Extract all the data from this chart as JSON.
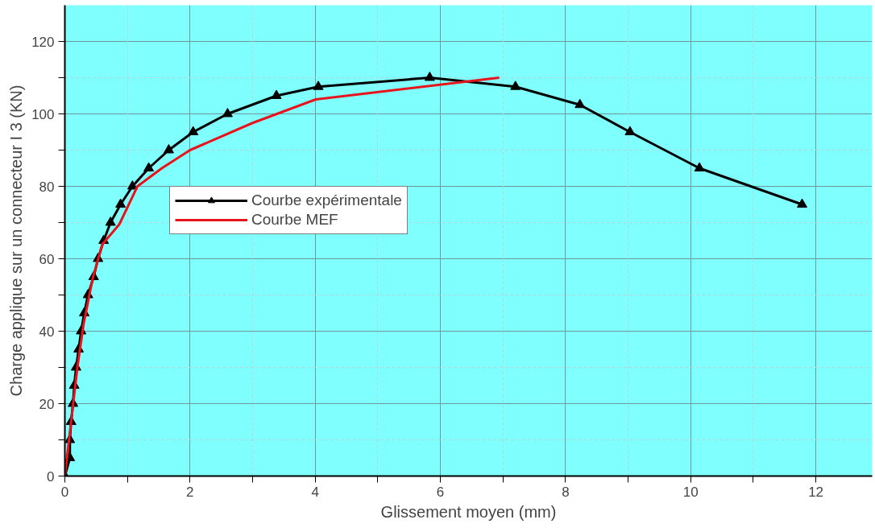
{
  "chart_data": {
    "type": "line",
    "xlabel": "Glissement moyen (mm)",
    "ylabel": "Charge applique sur un connecteur I 3 (KN)",
    "xlim": [
      0,
      12.9
    ],
    "ylim": [
      0,
      130
    ],
    "xticks": [
      0,
      {
        "value": 1,
        "label": null
      },
      2,
      {
        "value": 3,
        "label": null
      },
      4,
      {
        "value": 5,
        "label": null
      },
      6,
      {
        "value": 7,
        "label": null
      },
      8,
      {
        "value": 9,
        "label": null
      },
      10,
      {
        "value": 11,
        "label": null
      },
      12
    ],
    "yticks": [
      0,
      {
        "value": 10,
        "label": null
      },
      20,
      {
        "value": 30,
        "label": null
      },
      40,
      {
        "value": 50,
        "label": null
      },
      60,
      {
        "value": 70,
        "label": null
      },
      80,
      {
        "value": 90,
        "label": null
      },
      100,
      {
        "value": 110,
        "label": null
      },
      120
    ],
    "grid": true,
    "legend": "center left",
    "series": [
      {
        "name": "Courbe expérimentale",
        "color": "#000000",
        "marker": "triangle",
        "x": [
          0,
          0.08,
          0.08,
          0.1,
          0.13,
          0.15,
          0.18,
          0.22,
          0.26,
          0.31,
          0.37,
          0.46,
          0.53,
          0.62,
          0.73,
          0.89,
          1.08,
          1.34,
          1.66,
          2.05,
          2.6,
          3.38,
          4.05,
          5.83,
          7.2,
          8.23,
          9.03,
          10.14,
          11.78
        ],
        "values": [
          0,
          5,
          10,
          15,
          20,
          25,
          30,
          35,
          40,
          45,
          50,
          55,
          60,
          65,
          70,
          75,
          80,
          85,
          90,
          95,
          100,
          105,
          107.5,
          110,
          107.5,
          102.5,
          95,
          85,
          75
        ]
      },
      {
        "name": "Courbe MEF",
        "color": "#e8141c",
        "marker": "none",
        "x": [
          0,
          0.1,
          0.2,
          0.3,
          0.45,
          0.6,
          0.87,
          1.16,
          1.55,
          2.0,
          3.0,
          4.01,
          6.94
        ],
        "values": [
          0,
          15,
          30,
          42,
          55,
          64,
          69.5,
          80,
          85,
          90,
          97.5,
          104,
          110
        ]
      }
    ]
  }
}
